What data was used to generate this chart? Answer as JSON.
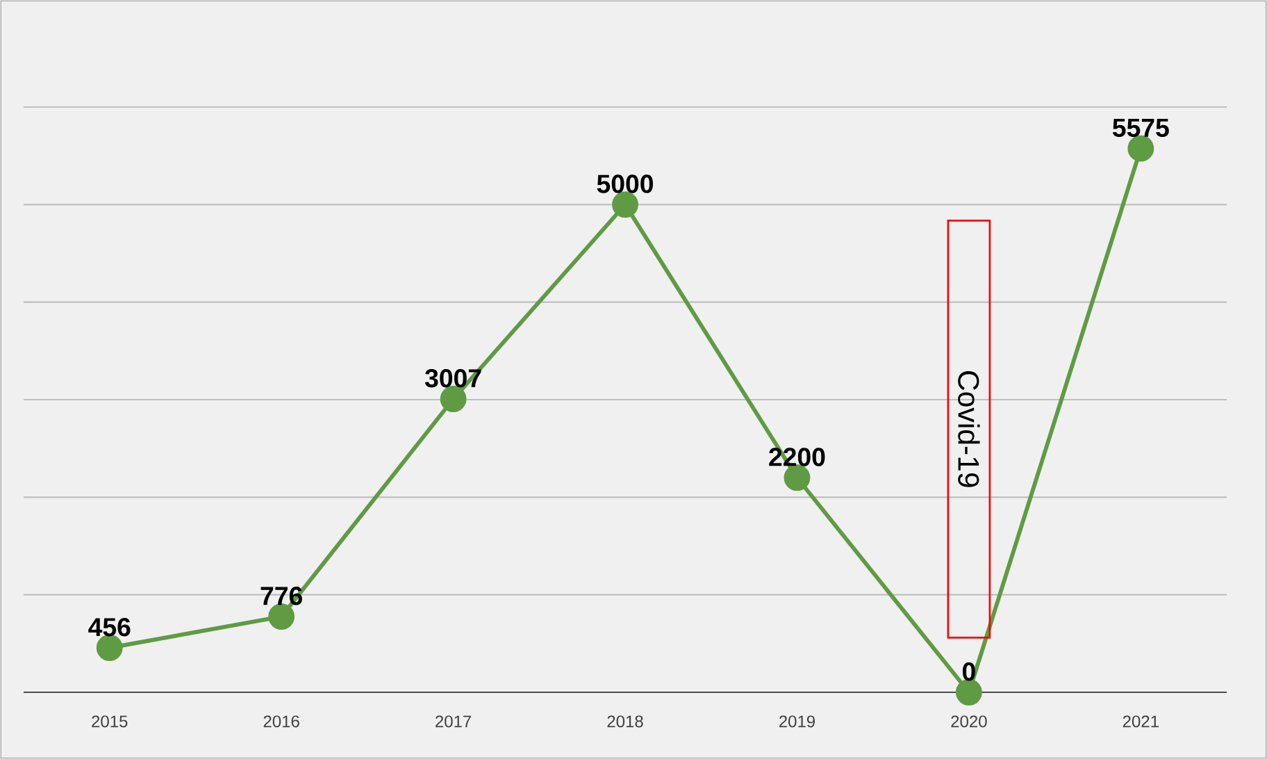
{
  "chart_data": {
    "type": "line",
    "categories": [
      "2015",
      "2016",
      "2017",
      "2018",
      "2019",
      "2020",
      "2021"
    ],
    "values": [
      456,
      776,
      3007,
      5000,
      2200,
      0,
      5575
    ],
    "value_labels": [
      "456",
      "776",
      "3007",
      "5000",
      "2200",
      "0",
      "5575"
    ],
    "color": "#5f9b43",
    "marker": "circle",
    "line_style": "solid",
    "grid": "y",
    "tick_labels": "x",
    "ylim": [
      0,
      6000
    ],
    "yticks": [
      {
        "value": 0,
        "label": null
      },
      {
        "value": 1000,
        "label": null
      },
      {
        "value": 2000,
        "label": null
      },
      {
        "value": 3000,
        "label": null
      },
      {
        "value": 4000,
        "label": null
      },
      {
        "value": 5000,
        "label": null
      },
      {
        "value": 6000,
        "label": null
      }
    ],
    "annotations": [
      "Covid-19"
    ]
  }
}
